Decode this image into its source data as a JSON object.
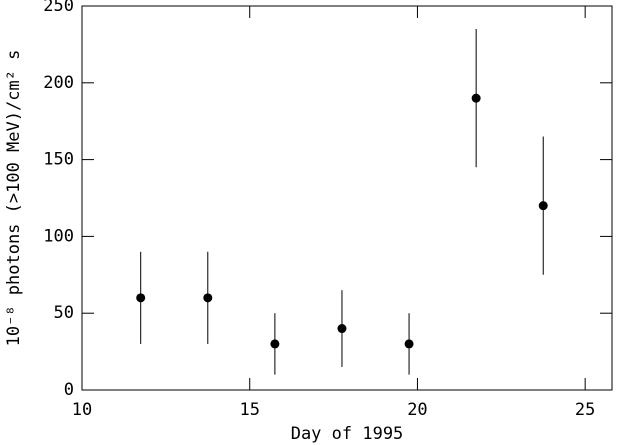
{
  "chart_data": {
    "type": "scatter",
    "xlabel": "Day of 1995",
    "ylabel": "10⁻⁸ photons (>100 MeV)/cm² s",
    "x": [
      11.75,
      13.75,
      15.75,
      17.75,
      19.75,
      21.75,
      23.75
    ],
    "series": [
      {
        "values": [
          60,
          60,
          30,
          40,
          30,
          190,
          120
        ],
        "errors": [
          30,
          30,
          20,
          25,
          20,
          45,
          45
        ],
        "color": "#000000"
      }
    ],
    "xlim": [
      10,
      25.8
    ],
    "xticks": [
      10,
      15,
      20,
      25
    ],
    "ylim": [
      0,
      250
    ],
    "yticks": [
      0,
      50,
      100,
      150,
      200,
      250
    ],
    "grid": false
  }
}
